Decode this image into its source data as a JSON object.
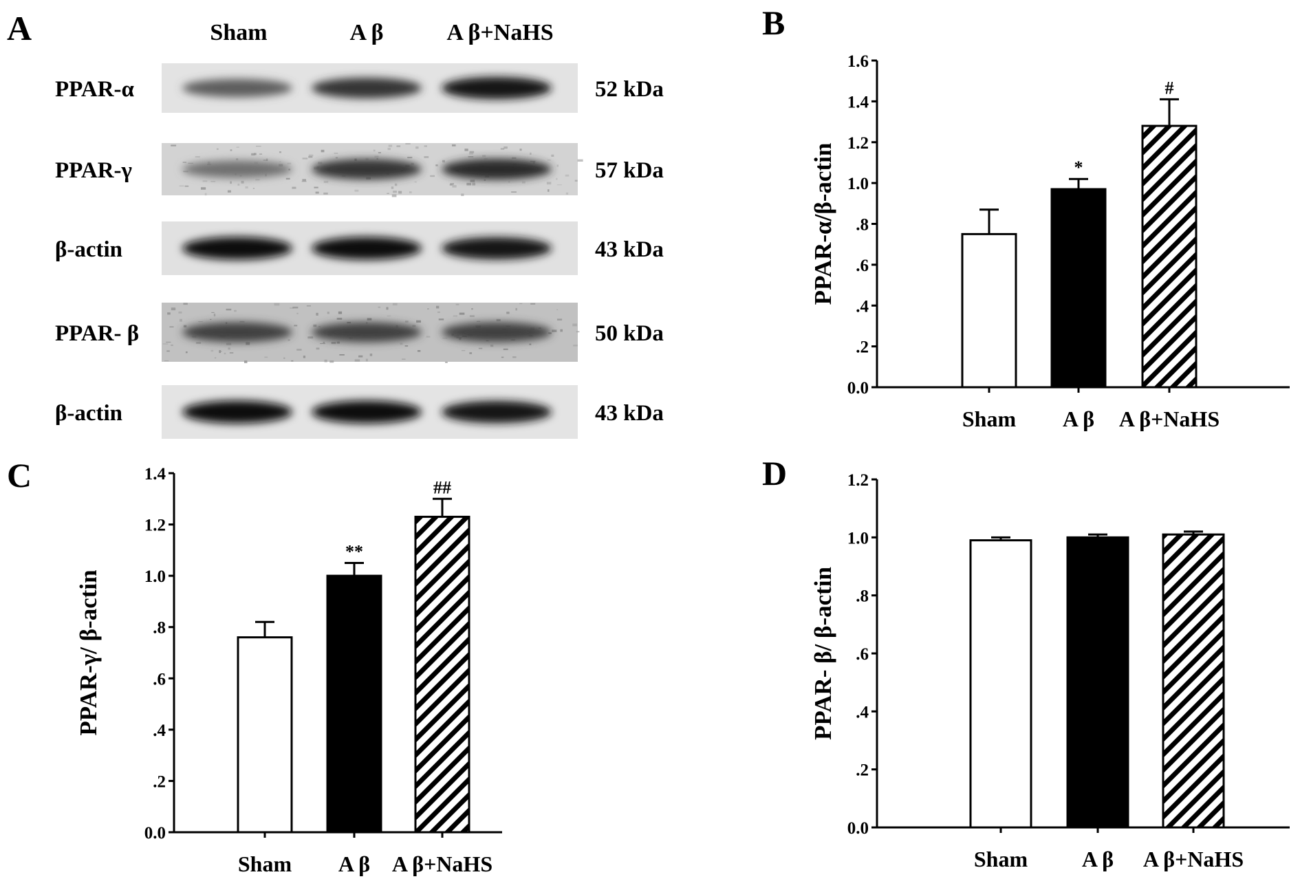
{
  "panel_a": {
    "letter": "A",
    "lanes": [
      "Sham",
      "A β",
      "A β+NaHS"
    ],
    "rows": [
      {
        "label": "PPAR-α",
        "kda": "52 kDa",
        "intensity": [
          0.55,
          0.75,
          0.9
        ],
        "noise": 0.12
      },
      {
        "label": "PPAR-γ",
        "kda": "57 kDa",
        "intensity": [
          0.45,
          0.75,
          0.8
        ],
        "noise": 0.35
      },
      {
        "label": "β-actin",
        "kda": "43 kDa",
        "intensity": [
          0.95,
          0.95,
          0.9
        ],
        "noise": 0.15
      },
      {
        "label": "PPAR- β",
        "kda": "50 kDa",
        "intensity": [
          0.7,
          0.7,
          0.7
        ],
        "noise": 0.6
      },
      {
        "label": "β-actin",
        "kda": "43 kDa",
        "intensity": [
          0.95,
          0.95,
          0.9
        ],
        "noise": 0.1
      }
    ]
  },
  "chart_data": [
    {
      "panel": "B",
      "type": "bar",
      "categories": [
        "Sham",
        "A β",
        "A β+NaHS"
      ],
      "values": [
        0.75,
        0.97,
        1.28
      ],
      "errors": [
        0.12,
        0.05,
        0.13
      ],
      "significance": [
        "",
        "*",
        "#"
      ],
      "fills": [
        "white",
        "black",
        "hatch"
      ],
      "ylabel": "PPAR-α/β-actin",
      "xlabel": "",
      "ylim": [
        0,
        1.6
      ],
      "yticks": [
        "0.0",
        ".2",
        ".4",
        ".6",
        ".8",
        "1.0",
        "1.2",
        "1.4",
        "1.6"
      ]
    },
    {
      "panel": "C",
      "type": "bar",
      "categories": [
        "Sham",
        "A β",
        "A β+NaHS"
      ],
      "values": [
        0.76,
        1.0,
        1.23
      ],
      "errors": [
        0.06,
        0.05,
        0.07
      ],
      "significance": [
        "",
        "**",
        "##"
      ],
      "fills": [
        "white",
        "black",
        "hatch"
      ],
      "ylabel": "PPAR-γ/ β-actin",
      "xlabel": "",
      "ylim": [
        0,
        1.4
      ],
      "yticks": [
        "0.0",
        ".2",
        ".4",
        ".6",
        ".8",
        "1.0",
        "1.2",
        "1.4"
      ]
    },
    {
      "panel": "D",
      "type": "bar",
      "categories": [
        "Sham",
        "A β",
        "A β+NaHS"
      ],
      "values": [
        0.99,
        1.0,
        1.01
      ],
      "errors": [
        0.01,
        0.01,
        0.01
      ],
      "significance": [
        "",
        "",
        ""
      ],
      "fills": [
        "white",
        "black",
        "hatch"
      ],
      "ylabel": "PPAR- β/ β-actin",
      "xlabel": "",
      "ylim": [
        0,
        1.2
      ],
      "yticks": [
        "0.0",
        ".2",
        ".4",
        ".6",
        ".8",
        "1.0",
        "1.2"
      ]
    }
  ]
}
